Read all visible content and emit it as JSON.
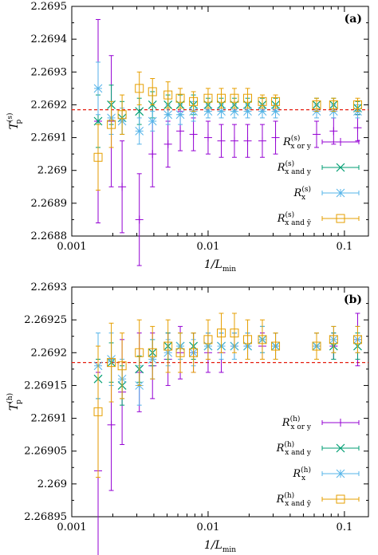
{
  "colors": {
    "or": "#9400d3",
    "and": "#009e73",
    "x": "#56b4e9",
    "bar": "#e69f00",
    "ref": "#e51e10"
  },
  "chart_data": [
    {
      "type": "scatter",
      "panel_tag": "(a)",
      "x_scale": "log",
      "xlim": [
        0.001,
        0.15
      ],
      "ylim": [
        2.2688,
        2.2695
      ],
      "x_ticks": [
        "0.001",
        "0.01",
        "0.1"
      ],
      "y_ticks": [
        "2.2688",
        "2.2689",
        "2.269",
        "2.2691",
        "2.2692",
        "2.2693",
        "2.2694",
        "2.2695"
      ],
      "xlabel": {
        "main": "1/L",
        "sub": "min"
      },
      "ylabel": {
        "main": "T",
        "sub": "p",
        "sup": "(s)"
      },
      "reference_line": 2.269185,
      "legend": [
        {
          "key": "or",
          "main": "R",
          "sup": "(s)",
          "sub": "x or y"
        },
        {
          "key": "and",
          "main": "R",
          "sup": "(s)",
          "sub": "x and y"
        },
        {
          "key": "x",
          "main": "R",
          "sup": "(s)",
          "sub": "x"
        },
        {
          "key": "bar",
          "main": "R",
          "sup": "(s)",
          "sub": "x and ȳ"
        }
      ],
      "series": [
        {
          "key": "or",
          "marker": "plus",
          "x": [
            0.00156,
            0.00195,
            0.00234,
            0.00313,
            0.00391,
            0.00508,
            0.00625,
            0.00781,
            0.01,
            0.0125,
            0.0156,
            0.0195,
            0.025,
            0.03125,
            0.0625,
            0.0833,
            0.125
          ],
          "y": [
            2.26915,
            2.26915,
            2.26895,
            2.26885,
            2.26905,
            2.26908,
            2.26912,
            2.26911,
            2.2691,
            2.26909,
            2.26909,
            2.26909,
            2.26909,
            2.2691,
            2.26911,
            2.26912,
            2.26913
          ],
          "err": [
            0.00031,
            0.0002,
            0.00014,
            0.00014,
            0.0001,
            7e-05,
            6e-05,
            5e-05,
            5e-05,
            5e-05,
            5e-05,
            5e-05,
            5e-05,
            5e-05,
            4e-05,
            4e-05,
            4e-05
          ]
        },
        {
          "key": "and",
          "marker": "cross",
          "x": [
            0.00156,
            0.00195,
            0.00234,
            0.00313,
            0.00391,
            0.00508,
            0.00625,
            0.00781,
            0.01,
            0.0125,
            0.0156,
            0.0195,
            0.025,
            0.03125,
            0.0625,
            0.0833,
            0.125
          ],
          "y": [
            2.26915,
            2.2692,
            2.26916,
            2.26918,
            2.2692,
            2.2692,
            2.2692,
            2.2692,
            2.2692,
            2.2692,
            2.2692,
            2.2692,
            2.2692,
            2.2692,
            2.2692,
            2.2692,
            2.26919
          ],
          "err": [
            8e-05,
            6e-05,
            5e-05,
            4e-05,
            4e-05,
            3e-05,
            3e-05,
            3e-05,
            2e-05,
            2e-05,
            2e-05,
            2e-05,
            2e-05,
            2e-05,
            2e-05,
            2e-05,
            2e-05
          ]
        },
        {
          "key": "x",
          "marker": "star",
          "x": [
            0.00156,
            0.00195,
            0.00234,
            0.00313,
            0.00391,
            0.00508,
            0.00625,
            0.00781,
            0.01,
            0.0125,
            0.0156,
            0.0195,
            0.025,
            0.03125,
            0.0625,
            0.0833,
            0.125
          ],
          "y": [
            2.26925,
            2.26916,
            2.26915,
            2.26912,
            2.26915,
            2.26917,
            2.26917,
            2.26918,
            2.26918,
            2.26918,
            2.26918,
            2.26918,
            2.26918,
            2.26918,
            2.26918,
            2.26918,
            2.26918
          ],
          "err": [
            8e-05,
            5e-05,
            4e-05,
            4e-05,
            3e-05,
            3e-05,
            3e-05,
            3e-05,
            2e-05,
            2e-05,
            2e-05,
            2e-05,
            2e-05,
            2e-05,
            2e-05,
            2e-05,
            2e-05
          ]
        },
        {
          "key": "bar",
          "marker": "square",
          "x": [
            0.00156,
            0.00195,
            0.00234,
            0.00313,
            0.00391,
            0.00508,
            0.00625,
            0.00781,
            0.01,
            0.0125,
            0.0156,
            0.0195,
            0.025,
            0.03125,
            0.0625,
            0.0833,
            0.125
          ],
          "y": [
            2.26904,
            2.26914,
            2.26917,
            2.26925,
            2.26924,
            2.26923,
            2.26922,
            2.26921,
            2.26922,
            2.26922,
            2.26922,
            2.26922,
            2.26921,
            2.26921,
            2.2692,
            2.2692,
            2.2692
          ],
          "err": [
            0.0001,
            7e-05,
            6e-05,
            5e-05,
            4e-05,
            4e-05,
            3e-05,
            3e-05,
            3e-05,
            3e-05,
            3e-05,
            3e-05,
            2e-05,
            2e-05,
            2e-05,
            2e-05,
            2e-05
          ]
        }
      ]
    },
    {
      "type": "scatter",
      "panel_tag": "(b)",
      "x_scale": "log",
      "xlim": [
        0.001,
        0.15
      ],
      "ylim": [
        2.26895,
        2.2693
      ],
      "x_ticks": [
        "0.001",
        "0.01",
        "0.1"
      ],
      "y_ticks": [
        "2.26895",
        "2.269",
        "2.26905",
        "2.2691",
        "2.26915",
        "2.2692",
        "2.26925",
        "2.2693"
      ],
      "xlabel": {
        "main": "1/L",
        "sub": "min"
      },
      "ylabel": {
        "main": "T",
        "sub": "p",
        "sup": "(h)"
      },
      "reference_line": 2.269185,
      "legend": [
        {
          "key": "or",
          "main": "R",
          "sup": "(h)",
          "sub": "x or y"
        },
        {
          "key": "and",
          "main": "R",
          "sup": "(h)",
          "sub": "x and y"
        },
        {
          "key": "x",
          "main": "R",
          "sup": "(h)",
          "sub": "x"
        },
        {
          "key": "bar",
          "main": "R",
          "sup": "(h)",
          "sub": "x and ȳ"
        }
      ],
      "series": [
        {
          "key": "or",
          "marker": "plus",
          "x": [
            0.00156,
            0.00195,
            0.00234,
            0.00313,
            0.00391,
            0.00508,
            0.00625,
            0.00781,
            0.01,
            0.0125,
            0.0156,
            0.0195,
            0.025,
            0.03125,
            0.0625,
            0.0833,
            0.125
          ],
          "y": [
            2.26902,
            2.26909,
            2.26914,
            2.26917,
            2.26918,
            2.26919,
            2.2692,
            2.2692,
            2.2692,
            2.2692,
            2.26921,
            2.26921,
            2.26921,
            2.26921,
            2.26921,
            2.26921,
            2.26922
          ],
          "err": [
            0.00015,
            0.0001,
            8e-05,
            6e-05,
            5e-05,
            4e-05,
            4e-05,
            3e-05,
            3e-05,
            3e-05,
            2e-05,
            2e-05,
            2e-05,
            2e-05,
            2e-05,
            2e-05,
            4e-05
          ]
        },
        {
          "key": "and",
          "marker": "cross",
          "x": [
            0.00156,
            0.00195,
            0.00234,
            0.00313,
            0.00391,
            0.00508,
            0.00625,
            0.00781,
            0.01,
            0.0125,
            0.0156,
            0.0195,
            0.025,
            0.03125,
            0.0625,
            0.0833,
            0.125
          ],
          "y": [
            2.26916,
            2.269185,
            2.26915,
            2.269175,
            2.2692,
            2.26921,
            2.26921,
            2.26921,
            2.26921,
            2.26921,
            2.26921,
            2.26921,
            2.26922,
            2.26921,
            2.26921,
            2.26921,
            2.26921
          ],
          "err": [
            3e-05,
            3e-05,
            3e-05,
            2e-05,
            2e-05,
            2e-05,
            2e-05,
            2e-05,
            2e-05,
            2e-05,
            2e-05,
            2e-05,
            2e-05,
            2e-05,
            2e-05,
            2e-05,
            2e-05
          ]
        },
        {
          "key": "x",
          "marker": "star",
          "x": [
            0.00156,
            0.00195,
            0.00234,
            0.00313,
            0.00391,
            0.00508,
            0.00625,
            0.00781,
            0.01,
            0.0125,
            0.0156,
            0.0195,
            0.025,
            0.03125,
            0.0625,
            0.0833,
            0.125
          ],
          "y": [
            2.26918,
            2.26919,
            2.26916,
            2.26915,
            2.26919,
            2.2692,
            2.26921,
            2.2692,
            2.26921,
            2.26921,
            2.26921,
            2.26921,
            2.26922,
            2.26921,
            2.26921,
            2.26922,
            2.26922
          ],
          "err": [
            5e-05,
            4e-05,
            3e-05,
            3e-05,
            3e-05,
            2e-05,
            2e-05,
            2e-05,
            2e-05,
            2e-05,
            2e-05,
            2e-05,
            2e-05,
            2e-05,
            2e-05,
            2e-05,
            2e-05
          ]
        },
        {
          "key": "bar",
          "marker": "square",
          "x": [
            0.00156,
            0.00195,
            0.00234,
            0.00313,
            0.00391,
            0.00508,
            0.00625,
            0.00781,
            0.01,
            0.0125,
            0.0156,
            0.0195,
            0.025,
            0.03125,
            0.0625,
            0.0833,
            0.125
          ],
          "y": [
            2.26911,
            2.269185,
            2.26918,
            2.2692,
            2.2692,
            2.26921,
            2.2692,
            2.2692,
            2.26922,
            2.26923,
            2.26923,
            2.26922,
            2.26922,
            2.26921,
            2.26921,
            2.26922,
            2.26922
          ],
          "err": [
            0.0001,
            6e-05,
            5e-05,
            5e-05,
            4e-05,
            4e-05,
            3e-05,
            3e-05,
            3e-05,
            3e-05,
            3e-05,
            3e-05,
            3e-05,
            2e-05,
            2e-05,
            2e-05,
            2e-05
          ]
        }
      ]
    }
  ]
}
